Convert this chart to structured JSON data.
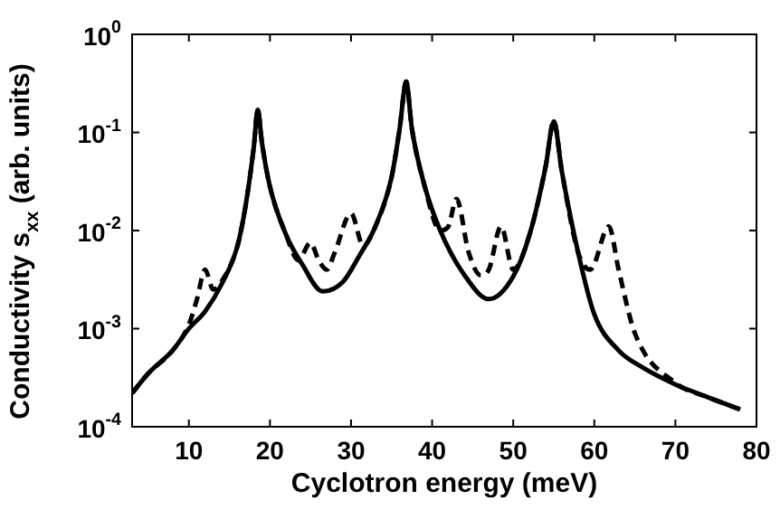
{
  "chart_data": {
    "type": "line",
    "xlabel": "Cyclotron energy (meV)",
    "ylabel": "Conductivity s$_{xx}$ (arb. units)",
    "xlim": [
      3,
      80
    ],
    "xticks": [
      10,
      20,
      30,
      40,
      50,
      60,
      70,
      80
    ],
    "ylim": [
      0.0001,
      1
    ],
    "yticks": [
      {
        "value": 0.0001,
        "label": "10$^{-4}$"
      },
      {
        "value": 0.001,
        "label": "10$^{-3}$"
      },
      {
        "value": 0.01,
        "label": "10$^{-2}$"
      },
      {
        "value": 0.1,
        "label": "10$^{-1}$"
      },
      {
        "value": 1,
        "label": "10$^{0}$"
      }
    ],
    "log": "y",
    "grid": false,
    "legend": false,
    "marker": "none",
    "series": [
      {
        "color": "#000000",
        "line_style": "solid",
        "x": [
          3,
          5,
          8,
          10,
          12,
          14,
          16,
          17,
          18,
          18.5,
          19,
          20,
          22,
          24,
          26.5,
          29,
          31,
          33,
          35,
          36,
          36.8,
          37.5,
          39,
          41,
          44,
          47,
          50,
          52,
          54,
          55,
          56,
          58,
          60,
          63,
          66,
          70,
          74,
          78
        ],
        "values": [
          0.00022,
          0.00035,
          0.0006,
          0.001,
          0.0015,
          0.0028,
          0.007,
          0.018,
          0.07,
          0.17,
          0.08,
          0.028,
          0.009,
          0.0045,
          0.0024,
          0.003,
          0.0055,
          0.011,
          0.035,
          0.11,
          0.33,
          0.11,
          0.03,
          0.01,
          0.0035,
          0.002,
          0.0034,
          0.009,
          0.045,
          0.13,
          0.04,
          0.006,
          0.0014,
          0.0006,
          0.0004,
          0.00027,
          0.0002,
          0.00015
        ]
      },
      {
        "color": "#000000",
        "line_style": "dashed",
        "x": [
          3,
          5,
          8,
          10,
          11,
          12,
          13,
          14,
          16,
          17,
          18,
          18.5,
          19,
          20,
          22,
          23.5,
          25,
          26,
          27,
          28,
          30,
          31.5,
          33,
          35,
          36,
          36.8,
          37.5,
          39,
          41,
          42,
          43,
          44.5,
          46,
          47,
          48.5,
          50,
          52,
          54,
          55,
          56,
          58,
          59.5,
          61.8,
          63,
          65,
          70,
          74,
          78
        ],
        "values": [
          0.00022,
          0.00035,
          0.0006,
          0.0011,
          0.002,
          0.004,
          0.0025,
          0.003,
          0.007,
          0.018,
          0.07,
          0.17,
          0.08,
          0.028,
          0.009,
          0.005,
          0.0075,
          0.005,
          0.004,
          0.006,
          0.015,
          0.007,
          0.011,
          0.035,
          0.11,
          0.33,
          0.11,
          0.03,
          0.01,
          0.011,
          0.021,
          0.006,
          0.0035,
          0.004,
          0.011,
          0.004,
          0.009,
          0.045,
          0.13,
          0.04,
          0.006,
          0.004,
          0.011,
          0.004,
          0.0009,
          0.00028,
          0.0002,
          0.00015
        ]
      }
    ]
  }
}
